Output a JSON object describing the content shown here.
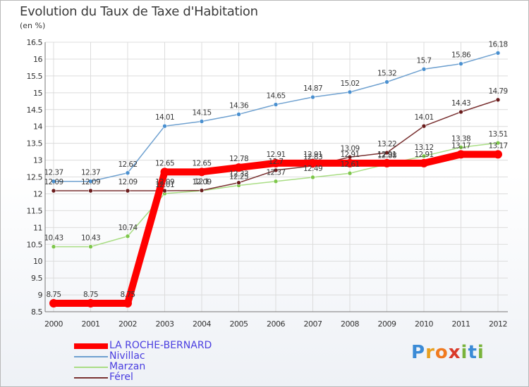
{
  "title": "Evolution du Taux de Taxe d'Habitation",
  "unit_label": "(en %)",
  "logo": {
    "text": "Proxiti",
    "letters": [
      "P",
      "r",
      "o",
      "x",
      "i",
      "t",
      "i"
    ],
    "colors": [
      "#3b8bd6",
      "#e8a020",
      "#f07a20",
      "#d93a2a",
      "#79b33b",
      "#3b8bd6",
      "#79b33b"
    ]
  },
  "chart_data": {
    "type": "line",
    "title": "Evolution du Taux de Taxe d'Habitation",
    "ylabel": "(en %)",
    "xlabel": "",
    "ylim": [
      8.5,
      16.5
    ],
    "yticks": [
      "8.5",
      "9",
      "9.5",
      "10",
      "10.5",
      "11",
      "11.5",
      "12",
      "12.5",
      "13",
      "13.5",
      "14",
      "14.5",
      "15",
      "15.5",
      "16",
      "16.5"
    ],
    "x": [
      "2000",
      "2001",
      "2002",
      "2003",
      "2004",
      "2005",
      "2006",
      "2007",
      "2008",
      "2009",
      "2010",
      "2011",
      "2012"
    ],
    "grid": true,
    "legend_position": "bottom-left",
    "series": [
      {
        "name": "Nivillac",
        "color": "#6fa1d0",
        "point_color": "#4a90d0",
        "values": [
          12.37,
          12.37,
          12.62,
          14.01,
          14.15,
          14.36,
          14.65,
          14.87,
          15.02,
          15.32,
          15.7,
          15.86,
          16.18
        ],
        "labels": [
          "12.37",
          "12.37",
          "12.62",
          "14.01",
          "14.15",
          "14.36",
          "14.65",
          "14.87",
          "15.02",
          "15.32",
          "15.7",
          "15.86",
          "16.18"
        ]
      },
      {
        "name": "Marzan",
        "color": "#a9dd84",
        "point_color": "#7dc64a",
        "values": [
          10.43,
          10.43,
          10.74,
          12.01,
          12.09,
          12.25,
          12.37,
          12.49,
          12.61,
          12.88,
          13.12,
          13.38,
          13.51
        ],
        "labels": [
          "10.43",
          "10.43",
          "10.74",
          "12.01",
          "12.09",
          "12.25",
          "12.37",
          "12.49",
          "12.61",
          "12.88",
          "13.12",
          "13.38",
          "13.51"
        ]
      },
      {
        "name": "Férel",
        "color": "#7a3232",
        "point_color": "#6a1c1c",
        "values": [
          12.09,
          12.09,
          12.09,
          12.09,
          12.1,
          12.33,
          12.7,
          12.83,
          13.09,
          13.22,
          14.01,
          14.43,
          14.79
        ],
        "labels": [
          "12.09",
          "12.09",
          "12.09",
          "12.09",
          "12.1",
          "12.33",
          "12.7",
          "12.83",
          "13.09",
          "13.22",
          "14.01",
          "14.43",
          "14.79"
        ]
      },
      {
        "name": "LA ROCHE-BERNARD",
        "color": "#ff0000",
        "point_color": "#ff0000",
        "values": [
          8.75,
          8.75,
          8.75,
          12.65,
          12.65,
          12.78,
          12.91,
          12.91,
          12.91,
          12.91,
          12.91,
          13.17,
          13.17
        ],
        "labels": [
          "8.75",
          "8.75",
          "8.75",
          "12.65",
          "12.65",
          "12.78",
          "12.91",
          "12.91",
          "12.91",
          "12.91",
          "12.91",
          "13.17",
          "13.17"
        ]
      }
    ],
    "legend": [
      {
        "name": "LA ROCHE-BERNARD",
        "color": "#ff0000",
        "text_color": "#4a3ee0",
        "width": 8
      },
      {
        "name": "Nivillac",
        "color": "#6fa1d0",
        "text_color": "#4a3ee0",
        "width": 1.5
      },
      {
        "name": "Marzan",
        "color": "#a9dd84",
        "text_color": "#4a3ee0",
        "width": 1.5
      },
      {
        "name": "Férel",
        "color": "#7a3232",
        "text_color": "#4a3ee0",
        "width": 1.5
      }
    ]
  }
}
